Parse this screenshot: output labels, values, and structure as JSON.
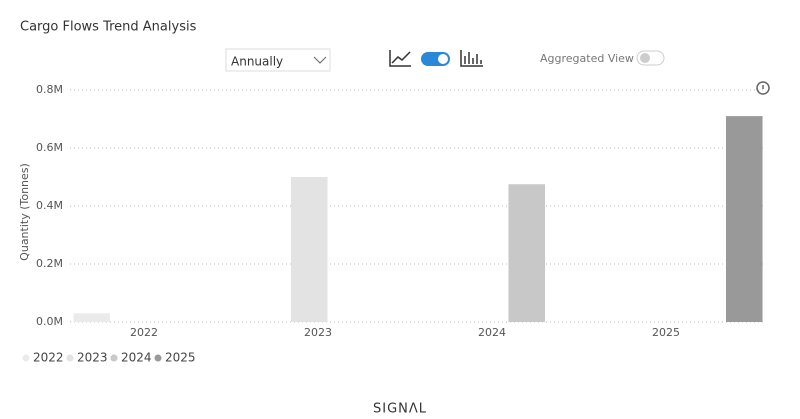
{
  "chart_data": {
    "type": "bar",
    "title": "Cargo Flows Trend Analysis",
    "y_label": "Quantity (Tonnes)",
    "categories": [
      "2022",
      "2023",
      "2024",
      "2025"
    ],
    "series": [
      {
        "name": "2022",
        "color": "#ebebeb",
        "values": [
          30000,
          null,
          null,
          null
        ]
      },
      {
        "name": "2023",
        "color": "#e3e3e3",
        "values": [
          null,
          500000,
          null,
          null
        ]
      },
      {
        "name": "2024",
        "color": "#c8c8c8",
        "values": [
          null,
          null,
          475000,
          null
        ]
      },
      {
        "name": "2025",
        "color": "#999999",
        "values": [
          null,
          null,
          null,
          710000
        ]
      }
    ],
    "ylim": [
      0,
      800000
    ],
    "yticks": [
      {
        "value": 0,
        "label": "0.0M"
      },
      {
        "value": 200000,
        "label": "0.2M"
      },
      {
        "value": 400000,
        "label": "0.4M"
      },
      {
        "value": 600000,
        "label": "0.6M"
      },
      {
        "value": 800000,
        "label": "0.8M"
      }
    ],
    "grid": true,
    "legend": "bottom-left"
  },
  "controls": {
    "period": "Annually",
    "aggregated_view": "Aggregated View"
  },
  "footer": "SIGNΛL"
}
